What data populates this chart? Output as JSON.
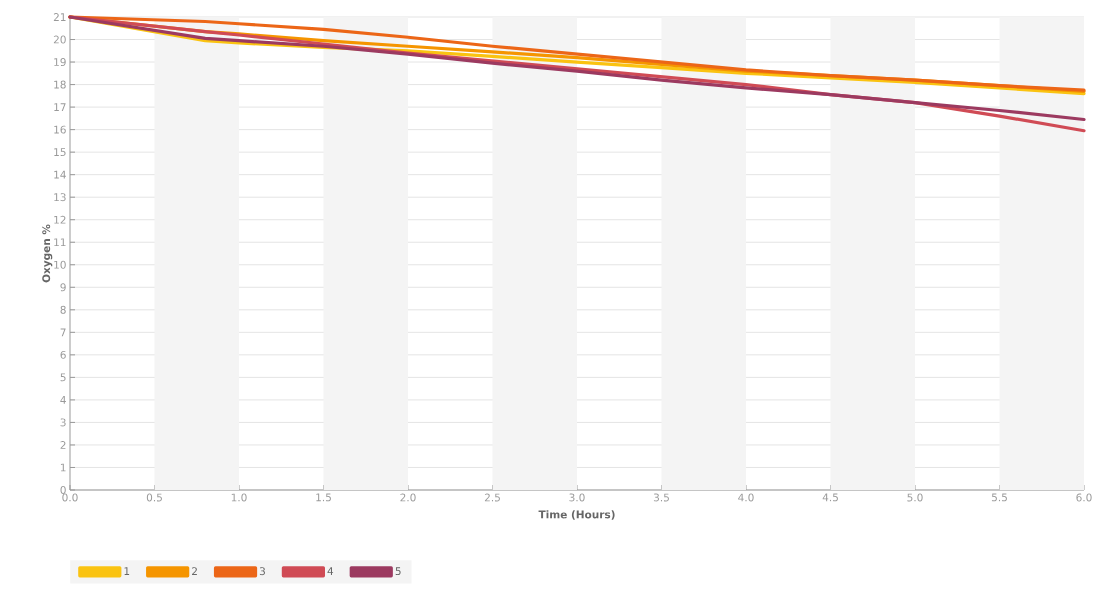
{
  "chart_data": {
    "type": "line",
    "xlabel": "Time (Hours)",
    "ylabel": "Oxygen %",
    "xlim": [
      0,
      6
    ],
    "ylim": [
      0,
      21
    ],
    "xticks": [
      {
        "value": 0,
        "label": "0.0"
      },
      {
        "value": 0.5,
        "label": "0.5"
      },
      {
        "value": 1,
        "label": "1.0"
      },
      {
        "value": 1.5,
        "label": "1.5"
      },
      {
        "value": 2,
        "label": "2.0"
      },
      {
        "value": 2.5,
        "label": "2.5"
      },
      {
        "value": 3,
        "label": "3.0"
      },
      {
        "value": 3.5,
        "label": "3.5"
      },
      {
        "value": 4,
        "label": "4.0"
      },
      {
        "value": 4.5,
        "label": "4.5"
      },
      {
        "value": 5,
        "label": "5.0"
      },
      {
        "value": 5.5,
        "label": "5.5"
      },
      {
        "value": 6,
        "label": "6.0"
      }
    ],
    "yticks": [
      0,
      1,
      2,
      3,
      4,
      5,
      6,
      7,
      8,
      9,
      10,
      11,
      12,
      13,
      14,
      15,
      16,
      17,
      18,
      19,
      20,
      21
    ],
    "grid": "y",
    "legend": "bottom left",
    "marker": "none",
    "line_style": "solid",
    "bands": [
      {
        "axis": "x",
        "from": 0.5,
        "to": 1,
        "color": "#f4f4f4"
      },
      {
        "axis": "x",
        "from": 1.5,
        "to": 2,
        "color": "#f4f4f4"
      },
      {
        "axis": "x",
        "from": 2.5,
        "to": 3,
        "color": "#f4f4f4"
      },
      {
        "axis": "x",
        "from": 3.5,
        "to": 4,
        "color": "#f4f4f4"
      },
      {
        "axis": "x",
        "from": 4.5,
        "to": 5,
        "color": "#f4f4f4"
      },
      {
        "axis": "x",
        "from": 5.5,
        "to": 6,
        "color": "#f4f4f4"
      }
    ],
    "x": [
      0,
      0.8,
      1,
      1.5,
      2,
      2.5,
      3,
      3.5,
      4,
      4.5,
      5,
      5.5,
      6
    ],
    "series": [
      {
        "name": "1",
        "color": "#fac311",
        "values": [
          21,
          19.95,
          19.85,
          19.65,
          19.5,
          19.25,
          19.0,
          18.75,
          18.5,
          18.3,
          18.1,
          17.85,
          17.6
        ]
      },
      {
        "name": "2",
        "color": "#f59500",
        "values": [
          21,
          20.35,
          20.25,
          19.95,
          19.7,
          19.45,
          19.2,
          18.9,
          18.6,
          18.4,
          18.2,
          17.95,
          17.7
        ]
      },
      {
        "name": "3",
        "color": "#ec6617",
        "values": [
          21,
          20.8,
          20.7,
          20.45,
          20.1,
          19.7,
          19.35,
          19.0,
          18.65,
          18.4,
          18.2,
          17.95,
          17.75
        ]
      },
      {
        "name": "4",
        "color": "#d04b55",
        "values": [
          21,
          20.35,
          20.2,
          19.8,
          19.4,
          19.05,
          18.7,
          18.35,
          18.0,
          17.55,
          17.2,
          16.6,
          15.95
        ]
      },
      {
        "name": "5",
        "color": "#9c3a60",
        "values": [
          21,
          20.05,
          19.95,
          19.7,
          19.35,
          18.95,
          18.6,
          18.2,
          17.85,
          17.55,
          17.2,
          16.85,
          16.45
        ]
      }
    ]
  }
}
